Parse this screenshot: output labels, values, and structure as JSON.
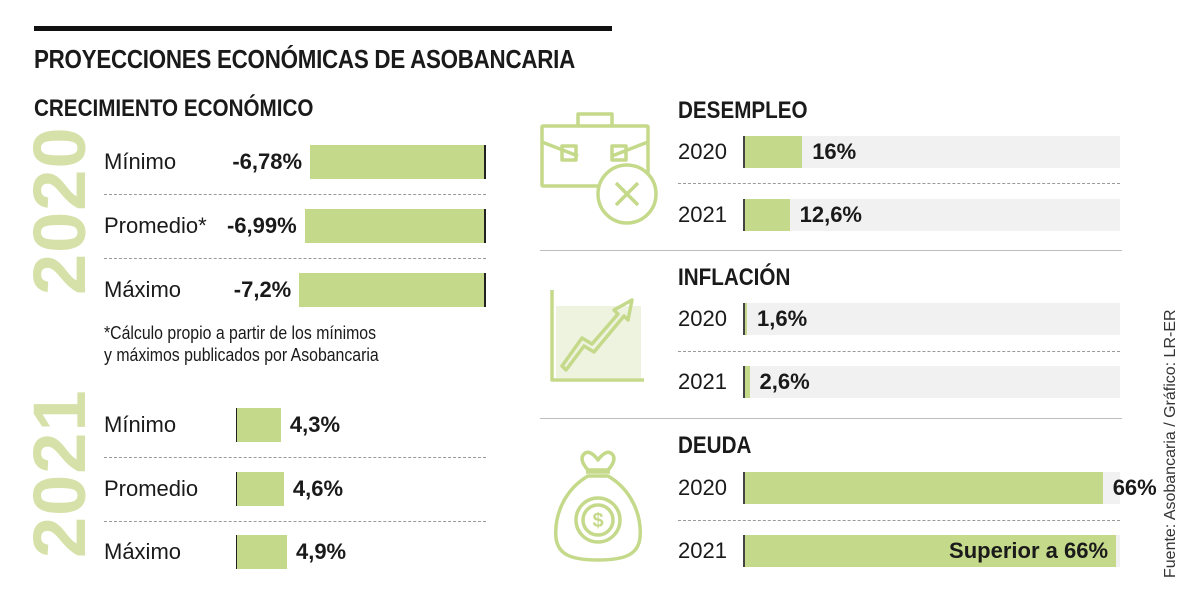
{
  "title": "PROYECCIONES ECONÓMICAS DE ASOBANCARIA",
  "source": "Fuente: Asobancaria / Gráfico: LR-ER",
  "chart_data": [
    {
      "type": "bar",
      "title": "CRECIMIENTO ECONÓMICO",
      "groups": [
        {
          "year": "2020",
          "rows": [
            {
              "label": "Mínimo",
              "value": -6.78,
              "display": "-6,78%"
            },
            {
              "label": "Promedio*",
              "value": -6.99,
              "display": "-6,99%"
            },
            {
              "label": "Máximo",
              "value": -7.2,
              "display": "-7,2%"
            }
          ]
        },
        {
          "year": "2021",
          "rows": [
            {
              "label": "Mínimo",
              "value": 4.3,
              "display": "4,3%"
            },
            {
              "label": "Promedio",
              "value": 4.6,
              "display": "4,6%"
            },
            {
              "label": "Máximo",
              "value": 4.9,
              "display": "4,9%"
            }
          ]
        }
      ],
      "note": [
        "*Cálculo propio a partir de los mínimos",
        "y máximos publicados por Asobancaria"
      ]
    },
    {
      "type": "bar",
      "title": "DESEMPLEO",
      "rows": [
        {
          "year": "2020",
          "value": 16,
          "display": "16%"
        },
        {
          "year": "2021",
          "value": 12.6,
          "display": "12,6%"
        }
      ]
    },
    {
      "type": "bar",
      "title": "INFLACIÓN",
      "rows": [
        {
          "year": "2020",
          "value": 1.6,
          "display": "1,6%"
        },
        {
          "year": "2021",
          "value": 2.6,
          "display": "2,6%"
        }
      ]
    },
    {
      "type": "bar",
      "title": "DEUDA",
      "rows": [
        {
          "year": "2020",
          "value": 66,
          "display": "66%"
        },
        {
          "year": "2021",
          "value": 68.5,
          "display": "Superior a 66%"
        }
      ]
    }
  ],
  "icons": {
    "desempleo": "briefcase-x-icon",
    "inflacion": "trend-up-icon",
    "deuda": "money-bag-icon"
  },
  "colors": {
    "bar": "#c5d98a",
    "year_watermark": "#d6e1a9",
    "icon": "#c5d98a",
    "track": "#f1f1f1"
  }
}
